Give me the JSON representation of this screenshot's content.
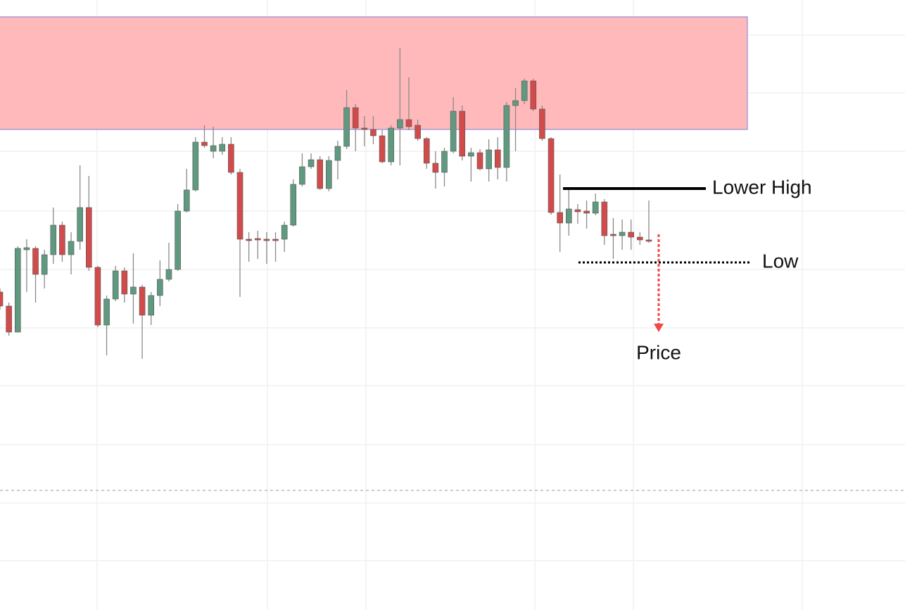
{
  "chart_data": {
    "type": "candlestick",
    "ylim": [
      0,
      867
    ],
    "up_color": "#5f9a80",
    "down_color": "#d24b4b",
    "zone": {
      "low": 683,
      "high": 843,
      "color": "#ffb9bb",
      "border": "#8f8fd4"
    },
    "open": [
      452,
      432,
      395,
      512,
      514,
      477,
      505,
      547,
      505,
      524,
      572,
      487,
      405,
      442,
      482,
      449,
      459,
      419,
      447,
      470,
      484,
      567,
      597,
      665,
      652,
      652,
      662,
      622,
      527,
      528,
      527,
      527,
      527,
      547,
      605,
      630,
      640,
      599,
      639,
      659,
      714,
      685,
      683,
      674,
      637,
      685,
      697,
      689,
      670,
      635,
      622,
      652,
      709,
      645,
      650,
      627,
      654,
      629,
      717,
      724,
      752,
      712,
      670,
      565,
      550,
      569,
      567,
      564,
      580,
      534,
      532,
      537,
      530,
      526
    ],
    "high": [
      457,
      437,
      517,
      527,
      517,
      512,
      572,
      552,
      537,
      632,
      617,
      489,
      447,
      489,
      487,
      507,
      462,
      452,
      497,
      522,
      577,
      627,
      672,
      689,
      687,
      672,
      672,
      627,
      537,
      539,
      537,
      537,
      552,
      612,
      649,
      649,
      645,
      645,
      667,
      739,
      719,
      702,
      702,
      682,
      689,
      799,
      757,
      697,
      672,
      652,
      657,
      729,
      717,
      657,
      655,
      669,
      672,
      722,
      742,
      755,
      755,
      717,
      672,
      619,
      599,
      577,
      582,
      592,
      584,
      557,
      555,
      555,
      537,
      582
    ],
    "low": [
      427,
      390,
      395,
      452,
      437,
      457,
      492,
      495,
      477,
      512,
      482,
      402,
      362,
      439,
      437,
      407,
      357,
      405,
      432,
      467,
      482,
      565,
      595,
      657,
      642,
      647,
      619,
      445,
      495,
      499,
      492,
      495,
      509,
      545,
      602,
      627,
      597,
      595,
      612,
      655,
      652,
      659,
      662,
      635,
      632,
      632,
      682,
      667,
      627,
      599,
      602,
      649,
      639,
      609,
      625,
      609,
      612,
      609,
      652,
      719,
      709,
      667,
      562,
      509,
      532,
      549,
      542,
      561,
      519,
      499,
      512,
      512,
      519,
      522
    ],
    "close": [
      432,
      395,
      514,
      515,
      477,
      505,
      547,
      505,
      524,
      572,
      487,
      405,
      442,
      482,
      449,
      459,
      419,
      447,
      470,
      484,
      567,
      597,
      665,
      660,
      660,
      662,
      622,
      527,
      526,
      526,
      526,
      525,
      547,
      605,
      630,
      640,
      599,
      639,
      659,
      714,
      685,
      683,
      674,
      637,
      685,
      697,
      687,
      670,
      635,
      622,
      652,
      709,
      645,
      650,
      627,
      654,
      629,
      717,
      724,
      752,
      712,
      670,
      565,
      550,
      570,
      566,
      564,
      580,
      532,
      532,
      537,
      530,
      526,
      525
    ],
    "annotations": [
      {
        "text": "Lower High",
        "value": 599,
        "style": "solid"
      },
      {
        "text": "Low",
        "value": 494,
        "style": "dotted"
      }
    ],
    "arrow_label": "Price"
  }
}
